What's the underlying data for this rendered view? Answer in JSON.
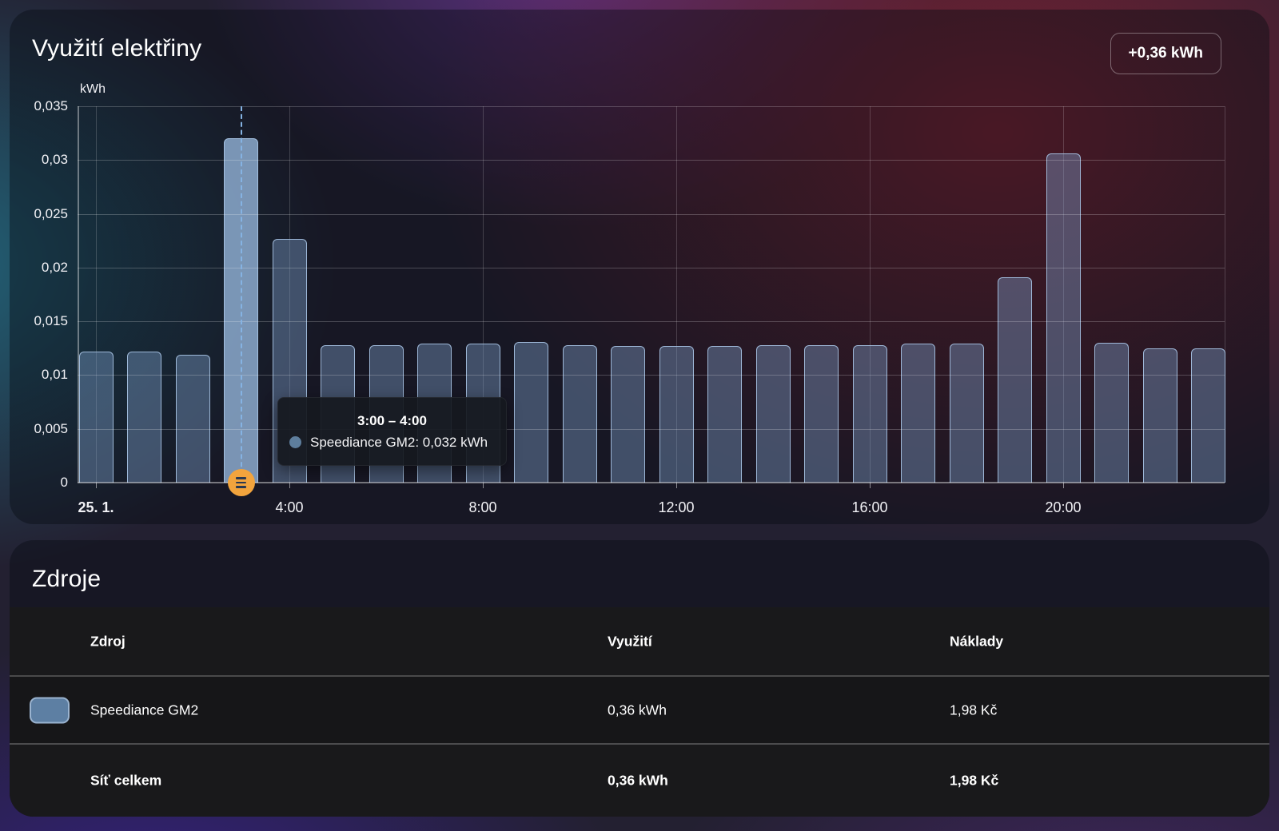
{
  "energy_card": {
    "title": "Využití elektřiny",
    "total_badge": "+0,36 kWh"
  },
  "chart_data": {
    "type": "bar",
    "title": "Využití elektřiny",
    "ylabel_unit": "kWh",
    "ylim": [
      0,
      0.035
    ],
    "grid": true,
    "categories_hours": [
      "0:00",
      "1:00",
      "2:00",
      "3:00",
      "4:00",
      "5:00",
      "6:00",
      "7:00",
      "8:00",
      "9:00",
      "10:00",
      "11:00",
      "12:00",
      "13:00",
      "14:00",
      "15:00",
      "16:00",
      "17:00",
      "18:00",
      "19:00",
      "20:00",
      "21:00",
      "22:00",
      "23:00"
    ],
    "series": [
      {
        "name": "Speediance GM2",
        "values": [
          0.0122,
          0.0122,
          0.0119,
          0.032,
          0.0227,
          0.0128,
          0.0128,
          0.0129,
          0.0129,
          0.0131,
          0.0128,
          0.0127,
          0.0127,
          0.0127,
          0.0128,
          0.0128,
          0.0128,
          0.0129,
          0.0129,
          0.0191,
          0.0306,
          0.013,
          0.0125,
          0.0125
        ]
      }
    ],
    "highlight_index": 3,
    "y_ticks": [
      {
        "v": 0,
        "label": "0"
      },
      {
        "v": 0.005,
        "label": "0,005"
      },
      {
        "v": 0.01,
        "label": "0,01"
      },
      {
        "v": 0.015,
        "label": "0,015"
      },
      {
        "v": 0.02,
        "label": "0,02"
      },
      {
        "v": 0.025,
        "label": "0,025"
      },
      {
        "v": 0.03,
        "label": "0,03"
      },
      {
        "v": 0.035,
        "label": "0,035"
      }
    ],
    "x_ticks": [
      {
        "hour": 0,
        "label": "25. 1.",
        "bold": true
      },
      {
        "hour": 4,
        "label": "4:00",
        "bold": false
      },
      {
        "hour": 8,
        "label": "8:00",
        "bold": false
      },
      {
        "hour": 12,
        "label": "12:00",
        "bold": false
      },
      {
        "hour": 16,
        "label": "16:00",
        "bold": false
      },
      {
        "hour": 20,
        "label": "20:00",
        "bold": false
      }
    ]
  },
  "tooltip": {
    "title": "3:00 – 4:00",
    "entry": "Speediance GM2: 0,032 kWh"
  },
  "sources_card": {
    "title": "Zdroje",
    "table": {
      "headers": [
        "Zdroj",
        "Využití",
        "Náklady"
      ],
      "rows": [
        {
          "name": "Speediance GM2",
          "usage": "0,36 kWh",
          "cost": "1,98 Kč"
        },
        {
          "name": "Síť celkem",
          "usage": "0,36 kWh",
          "cost": "1,98 Kč"
        }
      ]
    }
  },
  "colors": {
    "bar_fill": "rgba(124,157,201,0.42)",
    "bar_highlight_fill": "rgba(150,183,221,0.78)",
    "bar_border": "rgba(168,196,228,0.9)",
    "highlight_line": "#85b3e3",
    "marker_orange": "#f2a43d",
    "tooltip_bullet": "#5e7e9d",
    "swatch_fill": "#5d7fa3",
    "swatch_border": "#9ab3cf"
  }
}
